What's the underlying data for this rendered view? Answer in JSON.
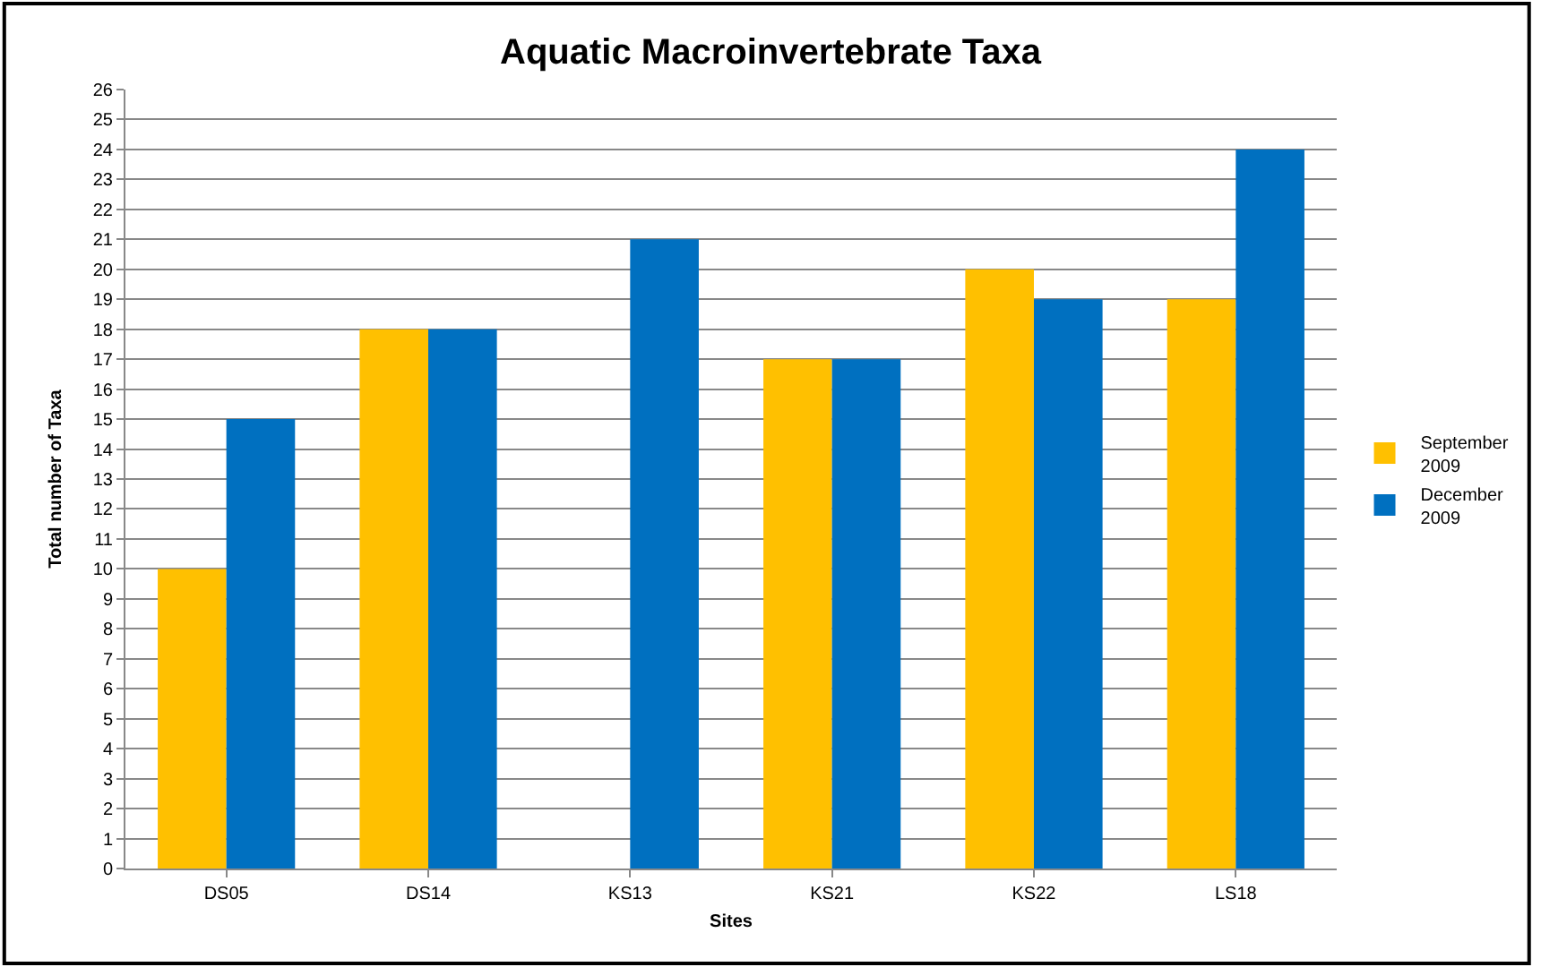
{
  "chart_data": {
    "type": "bar",
    "title": "Aquatic Macroinvertebrate Taxa",
    "xlabel": "Sites",
    "ylabel": "Total number of Taxa",
    "categories": [
      "DS05",
      "DS14",
      "KS13",
      "KS21",
      "KS22",
      "LS18"
    ],
    "series": [
      {
        "name": "September 2009",
        "color": "#ffc000",
        "values": [
          10,
          18,
          null,
          17,
          20,
          19
        ]
      },
      {
        "name": "December 2009",
        "color": "#0070c0",
        "values": [
          15,
          18,
          21,
          17,
          19,
          24
        ]
      }
    ],
    "ylim": [
      0,
      26
    ],
    "yticks": [
      0,
      1,
      2,
      3,
      4,
      5,
      6,
      7,
      8,
      9,
      10,
      11,
      12,
      13,
      14,
      15,
      16,
      17,
      18,
      19,
      20,
      21,
      22,
      23,
      24,
      25,
      26
    ],
    "grid": "y",
    "legend": "right"
  }
}
